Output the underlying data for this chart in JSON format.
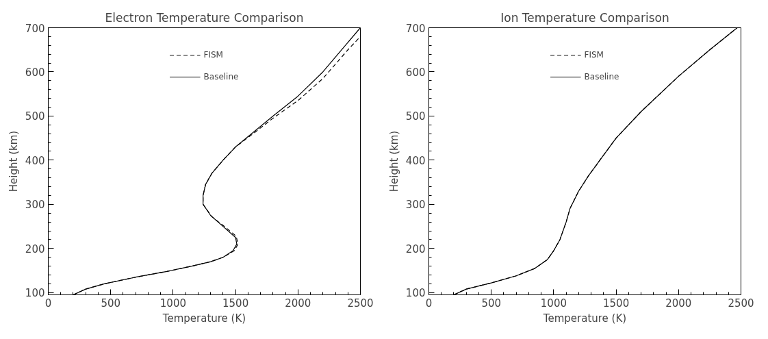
{
  "chart_data": [
    {
      "type": "line",
      "title": "Electron Temperature Comparison",
      "xlabel": "Temperature (K)",
      "ylabel": "Height (km)",
      "xlim": [
        0,
        2500
      ],
      "ylim": [
        95,
        700
      ],
      "xticks": [
        0,
        500,
        1000,
        1500,
        2000,
        2500
      ],
      "yticks": [
        100,
        200,
        300,
        400,
        500,
        600,
        700
      ],
      "grid": false,
      "legend": "top",
      "marker": "none",
      "series": [
        {
          "name": "FISM",
          "color": "#000000",
          "line_style": "dashed",
          "x": [
            200,
            300,
            450,
            700,
            950,
            1150,
            1300,
            1400,
            1490,
            1520,
            1505,
            1410,
            1310,
            1240,
            1240,
            1260,
            1310,
            1400,
            1500,
            1650,
            1800,
            2000,
            2200,
            2400,
            2500
          ],
          "values": [
            95,
            108,
            120,
            135,
            148,
            160,
            170,
            180,
            195,
            210,
            228,
            250,
            272,
            300,
            320,
            345,
            370,
            400,
            430,
            462,
            495,
            535,
            585,
            650,
            680
          ]
        },
        {
          "name": "Baseline",
          "color": "#000000",
          "line_style": "solid",
          "x": [
            200,
            300,
            450,
            700,
            950,
            1150,
            1300,
            1400,
            1480,
            1510,
            1500,
            1400,
            1300,
            1240,
            1240,
            1260,
            1310,
            1400,
            1500,
            1650,
            1800,
            2000,
            2200,
            2350,
            2500
          ],
          "values": [
            95,
            108,
            120,
            135,
            148,
            160,
            170,
            180,
            195,
            210,
            225,
            250,
            275,
            300,
            320,
            345,
            370,
            400,
            430,
            465,
            500,
            545,
            600,
            650,
            700
          ]
        }
      ]
    },
    {
      "type": "line",
      "title": "Ion Temperature Comparison",
      "xlabel": "Temperature (K)",
      "ylabel": "Height (km)",
      "xlim": [
        0,
        2500
      ],
      "ylim": [
        95,
        700
      ],
      "xticks": [
        0,
        500,
        1000,
        1500,
        2000,
        2500
      ],
      "yticks": [
        100,
        200,
        300,
        400,
        500,
        600,
        700
      ],
      "grid": false,
      "legend": "top",
      "marker": "none",
      "series": [
        {
          "name": "FISM",
          "color": "#000000",
          "line_style": "dashed",
          "x": [
            200,
            300,
            500,
            700,
            850,
            950,
            1000,
            1050,
            1100,
            1130,
            1200,
            1280,
            1370,
            1500,
            1700,
            2000,
            2250,
            2470
          ],
          "values": [
            95,
            108,
            122,
            138,
            155,
            175,
            195,
            220,
            260,
            290,
            330,
            365,
            400,
            450,
            510,
            590,
            650,
            700
          ]
        },
        {
          "name": "Baseline",
          "color": "#000000",
          "line_style": "solid",
          "x": [
            200,
            300,
            500,
            700,
            850,
            950,
            1000,
            1050,
            1100,
            1130,
            1200,
            1280,
            1370,
            1500,
            1700,
            2000,
            2250,
            2470
          ],
          "values": [
            95,
            108,
            122,
            138,
            155,
            175,
            195,
            220,
            260,
            290,
            330,
            365,
            400,
            450,
            510,
            590,
            650,
            700
          ]
        }
      ]
    }
  ]
}
